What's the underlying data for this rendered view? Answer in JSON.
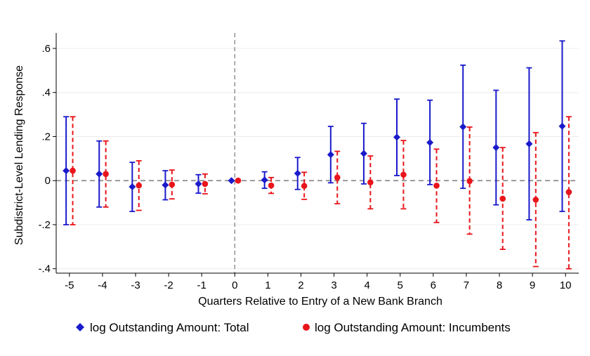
{
  "chart_data": {
    "type": "scatter",
    "xlabel": "Quarters Relative to Entry of a New Bank Branch",
    "ylabel": "Subdistrict-Level Lending Response",
    "xlim": [
      -5.4,
      10.4
    ],
    "ylim": [
      -0.42,
      0.67
    ],
    "x_ticks": [
      "-5",
      "-4",
      "-3",
      "-2",
      "-1",
      "0",
      "1",
      "2",
      "3",
      "4",
      "5",
      "6",
      "7",
      "8",
      "9",
      "10"
    ],
    "y_ticks": [
      {
        "value": -0.4,
        "label": "-.4"
      },
      {
        "value": -0.2,
        "label": "-.2"
      },
      {
        "value": 0,
        "label": "0"
      },
      {
        "value": 0.2,
        "label": ".2"
      },
      {
        "value": 0.4,
        "label": ".4"
      },
      {
        "value": 0.6,
        "label": ".6"
      }
    ],
    "reference_lines": {
      "horizontal_y": 0,
      "vertical_x": 0
    },
    "grid": true,
    "legend_position": "bottom",
    "series": [
      {
        "name": "log Outstanding Amount: Total",
        "marker": "diamond",
        "line_style": "solid",
        "color": "#1a1acc",
        "x": [
          -5,
          -4,
          -3,
          -2,
          -1,
          0,
          1,
          2,
          3,
          4,
          5,
          6,
          7,
          8,
          9,
          10
        ],
        "y": [
          0.045,
          0.03,
          -0.028,
          -0.02,
          -0.015,
          0.0,
          0.003,
          0.033,
          0.118,
          0.123,
          0.197,
          0.173,
          0.244,
          0.15,
          0.167,
          0.247
        ],
        "ci_low": [
          -0.2,
          -0.12,
          -0.14,
          -0.087,
          -0.057,
          0.0,
          -0.035,
          -0.04,
          -0.01,
          -0.015,
          0.023,
          -0.018,
          -0.035,
          -0.11,
          -0.178,
          -0.14
        ],
        "ci_high": [
          0.29,
          0.18,
          0.083,
          0.045,
          0.027,
          0.0,
          0.04,
          0.105,
          0.246,
          0.26,
          0.37,
          0.365,
          0.524,
          0.41,
          0.512,
          0.634
        ]
      },
      {
        "name": "log Outstanding Amount: Incumbents",
        "marker": "circle",
        "line_style": "dashed",
        "color": "#e8151b",
        "x": [
          -5,
          -4,
          -3,
          -2,
          -1,
          0,
          1,
          2,
          3,
          4,
          5,
          6,
          7,
          8,
          9,
          10
        ],
        "y": [
          0.045,
          0.03,
          -0.022,
          -0.018,
          -0.015,
          0.0,
          -0.022,
          -0.024,
          0.014,
          -0.008,
          0.027,
          -0.023,
          -0.002,
          -0.082,
          -0.087,
          -0.052
        ],
        "ci_low": [
          -0.2,
          -0.12,
          -0.135,
          -0.083,
          -0.06,
          0.0,
          -0.058,
          -0.085,
          -0.105,
          -0.128,
          -0.128,
          -0.19,
          -0.243,
          -0.312,
          -0.39,
          -0.4
        ],
        "ci_high": [
          0.29,
          0.18,
          0.09,
          0.048,
          0.03,
          0.0,
          0.014,
          0.038,
          0.133,
          0.112,
          0.182,
          0.143,
          0.243,
          0.15,
          0.218,
          0.29
        ]
      }
    ]
  }
}
